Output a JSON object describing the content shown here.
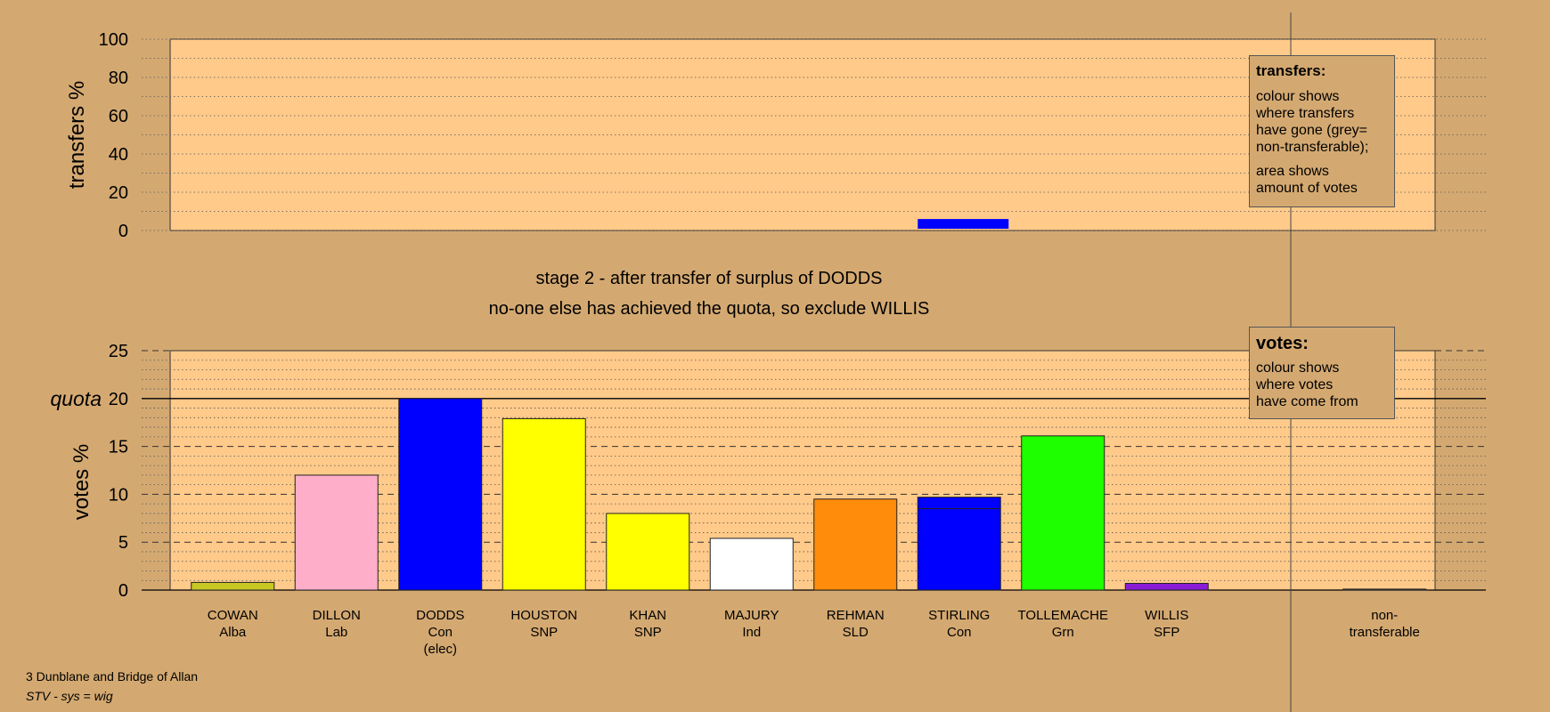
{
  "chart_data": [
    {
      "type": "bar",
      "ylabel": "transfers %",
      "ylim": [
        0,
        100
      ],
      "yticks": [
        0,
        20,
        40,
        60,
        80,
        100
      ],
      "grid": "dotted",
      "series": [
        {
          "values": [
            0,
            0,
            0,
            0,
            0,
            0,
            0,
            6,
            0,
            0,
            0
          ]
        }
      ],
      "colors": [
        "#0000ff"
      ]
    },
    {
      "type": "bar",
      "ylabel": "votes %",
      "ylim": [
        0,
        25
      ],
      "yticks": [
        0,
        5,
        10,
        15,
        20,
        25
      ],
      "quota": {
        "label": "quota",
        "value": 20
      },
      "grid": "dashed",
      "categories": [
        [
          "COWAN",
          "Alba"
        ],
        [
          "DILLON",
          "Lab"
        ],
        [
          "DODDS",
          "Con",
          "(elec)"
        ],
        [
          "HOUSTON",
          "SNP"
        ],
        [
          "KHAN",
          "SNP"
        ],
        [
          "MAJURY",
          "Ind"
        ],
        [
          "REHMAN",
          "SLD"
        ],
        [
          "STIRLING",
          "Con"
        ],
        [
          "TOLLEMACHE",
          "Grn"
        ],
        [
          "WILLIS",
          "SFP"
        ],
        [
          "non-",
          "transferable"
        ]
      ],
      "values": [
        0.8,
        12.0,
        20.0,
        17.9,
        8.0,
        5.4,
        9.5,
        9.7,
        16.1,
        0.7,
        0.1
      ],
      "transfer_portion": [
        0,
        0,
        0,
        0,
        0,
        0,
        0,
        1.2,
        0,
        0,
        0
      ],
      "colors": [
        "#c8c825",
        "#ffaec9",
        "#0000ff",
        "#ffff00",
        "#ffff00",
        "#ffffff",
        "#ff8c0a",
        "#0000ff",
        "#1eff00",
        "#8b1cd6",
        "#a0a0a0"
      ]
    }
  ],
  "stage_title": "stage 2 - after transfer of surplus of DODDS",
  "stage_subtitle": "no-one else has achieved the quota, so exclude WILLIS",
  "legend_transfers": {
    "title": "transfers:",
    "text1": "colour shows\nwhere transfers\nhave gone (grey=\nnon-transferable);",
    "text2": "area shows\namount of votes"
  },
  "legend_votes": {
    "title": "votes:",
    "text1": "colour shows\nwhere votes\nhave come from"
  },
  "footer": {
    "line1": "3 Dunblane and Bridge of Allan",
    "line2": "STV - sys = wig"
  }
}
